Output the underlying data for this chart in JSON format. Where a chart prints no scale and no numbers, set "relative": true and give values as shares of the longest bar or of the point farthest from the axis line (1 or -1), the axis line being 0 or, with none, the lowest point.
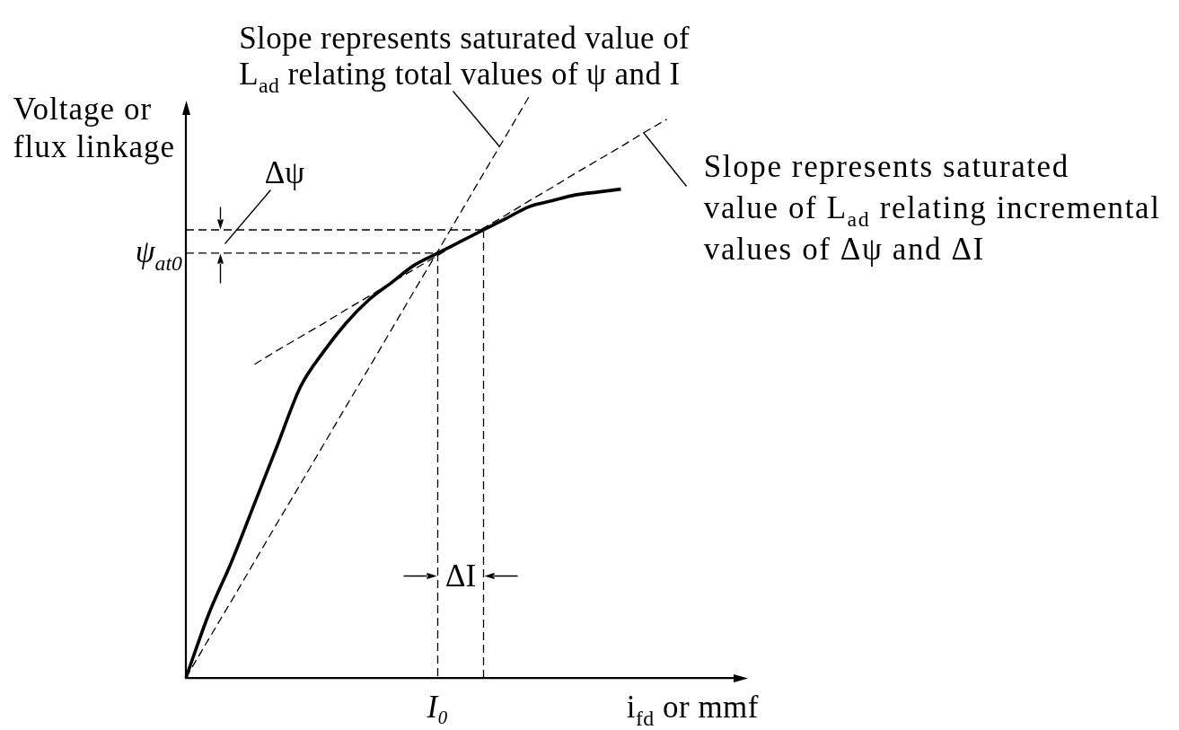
{
  "chart_data": {
    "type": "line",
    "relative": true,
    "xlabel": "i$_{fd}$ or mmf",
    "ylabel": "Voltage or\nflux linkage",
    "categories": [
      null,
      null,
      null,
      null,
      null,
      null,
      null,
      null,
      null,
      null,
      null,
      null,
      null,
      null,
      null,
      null,
      null,
      null,
      null,
      null,
      null,
      null,
      null,
      null,
      null
    ],
    "series": [
      {
        "color": "#000000",
        "line_style": "solid",
        "values": [
          0,
          0.11,
          0.2,
          0.3,
          0.4,
          0.5,
          0.56,
          0.61,
          0.65,
          0.68,
          0.71,
          0.73,
          0.75,
          0.77,
          0.79,
          0.81,
          0.82,
          0.83,
          0.835,
          0.84,
          null,
          null,
          null,
          null,
          null
        ]
      },
      {
        "color": "#000000",
        "line_style": "dashed",
        "values": [
          0,
          0.067,
          0.133,
          0.2,
          0.267,
          0.333,
          0.4,
          0.467,
          0.533,
          0.6,
          0.667,
          0.733,
          0.8,
          0.867,
          0.933,
          1,
          null,
          null,
          null,
          null,
          null,
          null,
          null,
          null,
          null
        ]
      },
      {
        "color": "#000000",
        "line_style": "dashed",
        "values": [
          null,
          null,
          null,
          0.539,
          0.563,
          0.586,
          0.609,
          0.633,
          0.656,
          0.68,
          0.703,
          0.726,
          0.75,
          0.773,
          0.796,
          0.82,
          0.843,
          0.867,
          0.89,
          0.913,
          0.937,
          0.96,
          null,
          null,
          null
        ]
      }
    ],
    "ref_lines": [
      {
        "axis": "y",
        "value": 0.73,
        "label": "ψ$_{at0}$",
        "line_style": "dashed"
      },
      {
        "axis": "y",
        "value": 0.77,
        "line_style": "dashed"
      }
    ],
    "annotations": [
      "Slope represents saturated value of\nL$_{ad}$ relating total values of ψ and I",
      "Slope represents saturated\nvalue of L$_{ad}$ relating incremental\nvalues of Δψ and ΔI",
      "Δψ",
      "ΔI",
      "I₀"
    ]
  }
}
